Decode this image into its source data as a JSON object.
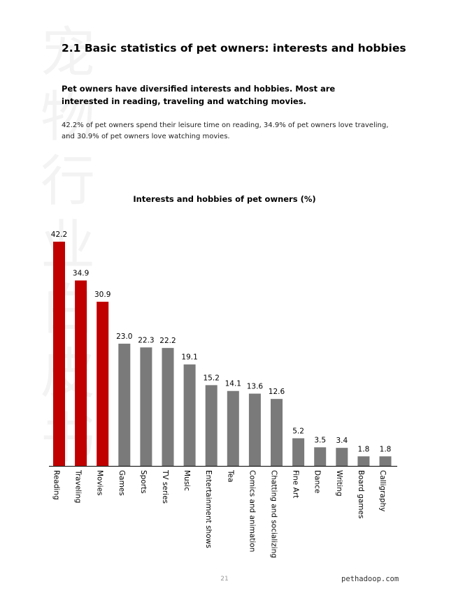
{
  "watermark": "宠物行业白皮书",
  "section_title": "2.1 Basic statistics of pet owners: interests and hobbies",
  "lead": "Pet owners have diversified interests and hobbies. Most are interested in reading, traveling and watching movies.",
  "detail": "42.2% of pet owners spend their leisure time on reading, 34.9% of pet owners love traveling, and 30.9% of pet owners love watching movies.",
  "page_number": "21",
  "site": "pethadoop.com",
  "colors": {
    "highlight": "#c00000",
    "default": "#7a7a7a"
  },
  "chart_data": {
    "type": "bar",
    "title": "Interests and hobbies of pet owners (%)",
    "xlabel": "",
    "ylabel": "",
    "categories": [
      "Reading",
      "Traveling",
      "Movies",
      "Games",
      "Sports",
      "TV series",
      "Music",
      "Entertainment shows",
      "Tea",
      "Comics and animation",
      "Chatting and socializing",
      "Fine Art",
      "Dance",
      "Writing",
      "Board games",
      "Calligraphy"
    ],
    "values": [
      42.2,
      34.9,
      30.9,
      23.0,
      22.3,
      22.2,
      19.1,
      15.2,
      14.1,
      13.6,
      12.6,
      5.2,
      3.5,
      3.4,
      1.8,
      1.8
    ],
    "value_labels": [
      "42.2",
      "34.9",
      "30.9",
      "23.0",
      "22.3",
      "22.2",
      "19.1",
      "15.2",
      "14.1",
      "13.6",
      "12.6",
      "5.2",
      "3.5",
      "3.4",
      "1.8",
      "1.8"
    ],
    "highlighted": [
      true,
      true,
      true,
      false,
      false,
      false,
      false,
      false,
      false,
      false,
      false,
      false,
      false,
      false,
      false,
      false
    ],
    "ylim": [
      0,
      42.2
    ],
    "grid": false,
    "legend": "none"
  }
}
